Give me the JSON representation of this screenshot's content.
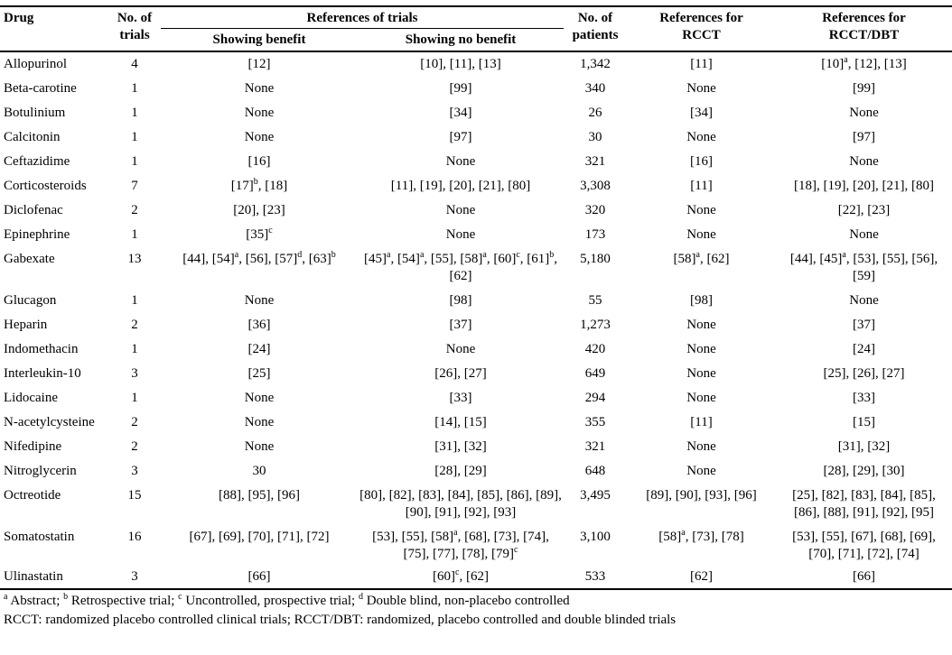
{
  "table": {
    "headers": {
      "drug": "Drug",
      "trials": "No. of\ntrials",
      "refs_group": "References of trials",
      "benefit": "Showing benefit",
      "no_benefit": "Showing no benefit",
      "patients": "No. of\npatients",
      "rcct": "References for\nRCCT",
      "rcct_dbt": "References for\nRCCT/DBT"
    },
    "rows": [
      {
        "drug": "Allopurinol",
        "trials": "4",
        "benefit": "[12]",
        "no_benefit": "[10], [11], [13]",
        "patients": "1,342",
        "rcct": "[11]",
        "rcct_dbt": "[10]^a, [12], [13]"
      },
      {
        "drug": "Beta-carotine",
        "trials": "1",
        "benefit": "None",
        "no_benefit": "[99]",
        "patients": "340",
        "rcct": "None",
        "rcct_dbt": "[99]"
      },
      {
        "drug": "Botulinium",
        "trials": "1",
        "benefit": "None",
        "no_benefit": "[34]",
        "patients": "26",
        "rcct": "[34]",
        "rcct_dbt": "None"
      },
      {
        "drug": "Calcitonin",
        "trials": "1",
        "benefit": "None",
        "no_benefit": "[97]",
        "patients": "30",
        "rcct": "None",
        "rcct_dbt": "[97]"
      },
      {
        "drug": "Ceftazidime",
        "trials": "1",
        "benefit": "[16]",
        "no_benefit": "None",
        "patients": "321",
        "rcct": "[16]",
        "rcct_dbt": "None"
      },
      {
        "drug": "Corticosteroids",
        "trials": "7",
        "benefit": "[17]^b, [18]",
        "no_benefit": "[11], [19], [20], [21], [80]",
        "patients": "3,308",
        "rcct": "[11]",
        "rcct_dbt": "[18], [19], [20], [21], [80]"
      },
      {
        "drug": "Diclofenac",
        "trials": "2",
        "benefit": "[20], [23]",
        "no_benefit": "None",
        "patients": "320",
        "rcct": "None",
        "rcct_dbt": "[22], [23]"
      },
      {
        "drug": "Epinephrine",
        "trials": "1",
        "benefit": "[35]^c",
        "no_benefit": "None",
        "patients": "173",
        "rcct": "None",
        "rcct_dbt": "None"
      },
      {
        "drug": "Gabexate",
        "trials": "13",
        "benefit": "[44], [54]^a, [56], [57]^d, [63]^b",
        "no_benefit": "[45]^a, [54]^a, [55], [58]^a, [60]^c, [61]^b, [62]",
        "patients": "5,180",
        "rcct": "[58]^a, [62]",
        "rcct_dbt": "[44], [45]^a, [53], [55], [56], [59]"
      },
      {
        "drug": "Glucagon",
        "trials": "1",
        "benefit": "None",
        "no_benefit": "[98]",
        "patients": "55",
        "rcct": "[98]",
        "rcct_dbt": "None"
      },
      {
        "drug": "Heparin",
        "trials": "2",
        "benefit": "[36]",
        "no_benefit": "[37]",
        "patients": "1,273",
        "rcct": "None",
        "rcct_dbt": "[37]"
      },
      {
        "drug": "Indomethacin",
        "trials": "1",
        "benefit": "[24]",
        "no_benefit": "None",
        "patients": "420",
        "rcct": "None",
        "rcct_dbt": "[24]"
      },
      {
        "drug": "Interleukin-10",
        "trials": "3",
        "benefit": "[25]",
        "no_benefit": "[26], [27]",
        "patients": "649",
        "rcct": "None",
        "rcct_dbt": "[25], [26], [27]"
      },
      {
        "drug": "Lidocaine",
        "trials": "1",
        "benefit": "None",
        "no_benefit": "[33]",
        "patients": "294",
        "rcct": "None",
        "rcct_dbt": "[33]"
      },
      {
        "drug": "N-acetylcysteine",
        "trials": "2",
        "benefit": "None",
        "no_benefit": "[14], [15]",
        "patients": "355",
        "rcct": "[11]",
        "rcct_dbt": "[15]"
      },
      {
        "drug": "Nifedipine",
        "trials": "2",
        "benefit": "None",
        "no_benefit": "[31], [32]",
        "patients": "321",
        "rcct": "None",
        "rcct_dbt": "[31], [32]"
      },
      {
        "drug": "Nitroglycerin",
        "trials": "3",
        "benefit": "30",
        "no_benefit": "[28], [29]",
        "patients": "648",
        "rcct": "None",
        "rcct_dbt": "[28], [29], [30]"
      },
      {
        "drug": "Octreotide",
        "trials": "15",
        "benefit": "[88], [95], [96]",
        "no_benefit": "[80], [82], [83], [84], [85], [86], [89], [90], [91], [92], [93]",
        "patients": "3,495",
        "rcct": "[89], [90], [93], [96]",
        "rcct_dbt": "[25], [82], [83], [84], [85], [86], [88], [91], [92], [95]"
      },
      {
        "drug": "Somatostatin",
        "trials": "16",
        "benefit": "[67], [69], [70], [71], [72]",
        "no_benefit": "[53], [55], [58]^a, [68], [73], [74], [75], [77], [78], [79]^c",
        "patients": "3,100",
        "rcct": "[58]^a, [73], [78]",
        "rcct_dbt": "[53], [55], [67], [68], [69], [70], [71], [72], [74]"
      },
      {
        "drug": "Ulinastatin",
        "trials": "3",
        "benefit": "[66]",
        "no_benefit": "[60]^c, [62]",
        "patients": "533",
        "rcct": "[62]",
        "rcct_dbt": "[66]"
      }
    ]
  },
  "footnotes": {
    "line1": "^a Abstract; ^b Retrospective trial; ^c Uncontrolled, prospective trial; ^d Double blind, non-placebo controlled",
    "line2": "RCCT: randomized placebo controlled clinical trials; RCCT/DBT: randomized, placebo controlled and double blinded trials"
  }
}
